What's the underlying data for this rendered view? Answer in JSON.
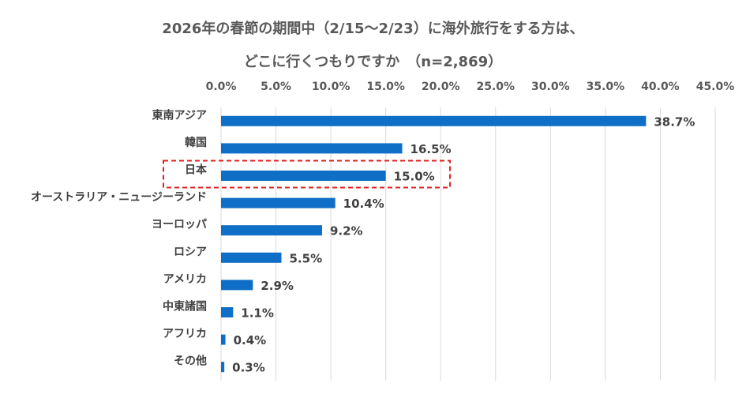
{
  "chart_data": {
    "type": "bar",
    "orientation": "horizontal",
    "title_line1": "2026年の春節の期間中（2/15～2/23）に海外旅行をする方は、",
    "title_line2": "どこに行くつもりですか　（n=2,869）",
    "categories": [
      "東南アジア",
      "韓国",
      "日本",
      "オーストラリア・ニュージーランド",
      "ヨーロッパ",
      "ロシア",
      "アメリカ",
      "中東諸国",
      "アフリカ",
      "その他"
    ],
    "values": [
      38.7,
      16.5,
      15.0,
      10.4,
      9.2,
      5.5,
      2.9,
      1.1,
      0.4,
      0.3
    ],
    "value_labels": [
      "38.7%",
      "16.5%",
      "15.0%",
      "10.4%",
      "9.2%",
      "5.5%",
      "2.9%",
      "1.1%",
      "0.4%",
      "0.3%"
    ],
    "x_ticks": [
      "0.0%",
      "5.0%",
      "10.0%",
      "15.0%",
      "20.0%",
      "25.0%",
      "30.0%",
      "35.0%",
      "40.0%",
      "45.0%"
    ],
    "xlim": [
      0,
      45
    ],
    "x_axis_position": "top",
    "grid": true,
    "legend": false,
    "bar_color": "#0F6FC6",
    "highlight_category": "日本",
    "highlight_color": "#E02020"
  }
}
